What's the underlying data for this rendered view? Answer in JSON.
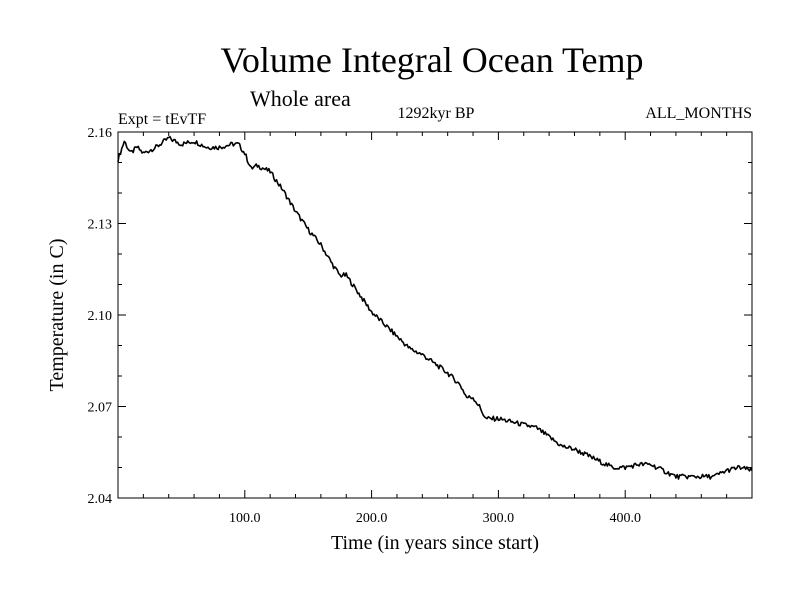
{
  "chart_data": {
    "type": "line",
    "title": "Volume Integral Ocean Temp",
    "subtitle": "Whole area",
    "top_left_label": "Expt = tEvTF",
    "top_center_label": "1292kyr BP",
    "top_right_label": "ALL_MONTHS",
    "xlabel": "Time (in years since start)",
    "ylabel": "Temperature (in C)",
    "xlim": [
      0,
      500
    ],
    "ylim": [
      2.04,
      2.16
    ],
    "x_ticks": [
      100,
      200,
      300,
      400
    ],
    "x_tick_labels": [
      "100.0",
      "200.0",
      "300.0",
      "400.0"
    ],
    "y_ticks": [
      2.04,
      2.07,
      2.1,
      2.13,
      2.16
    ],
    "y_tick_labels": [
      "2.04",
      "2.07",
      "2.10",
      "2.13",
      "2.16"
    ],
    "grid": false,
    "line_color": "#000000",
    "series": [
      {
        "name": "Volume Integral Ocean Temp",
        "x": [
          0,
          5,
          10,
          15,
          20,
          30,
          40,
          50,
          60,
          70,
          80,
          90,
          95,
          100,
          105,
          110,
          120,
          130,
          140,
          150,
          160,
          170,
          175,
          180,
          190,
          200,
          210,
          220,
          230,
          240,
          250,
          260,
          270,
          275,
          280,
          285,
          290,
          300,
          310,
          320,
          330,
          340,
          350,
          360,
          370,
          380,
          390,
          400,
          410,
          420,
          430,
          440,
          450,
          460,
          470,
          480,
          490,
          500
        ],
        "y": [
          2.151,
          2.157,
          2.153,
          2.155,
          2.153,
          2.155,
          2.158,
          2.156,
          2.157,
          2.155,
          2.155,
          2.156,
          2.156,
          2.153,
          2.148,
          2.149,
          2.147,
          2.141,
          2.134,
          2.128,
          2.123,
          2.116,
          2.113,
          2.113,
          2.107,
          2.101,
          2.097,
          2.093,
          2.089,
          2.087,
          2.084,
          2.081,
          2.077,
          2.073,
          2.073,
          2.07,
          2.066,
          2.066,
          2.065,
          2.064,
          2.063,
          2.06,
          2.057,
          2.056,
          2.054,
          2.052,
          2.05,
          2.05,
          2.051,
          2.051,
          2.049,
          2.047,
          2.047,
          2.047,
          2.047,
          2.049,
          2.05,
          2.049
        ]
      }
    ]
  }
}
